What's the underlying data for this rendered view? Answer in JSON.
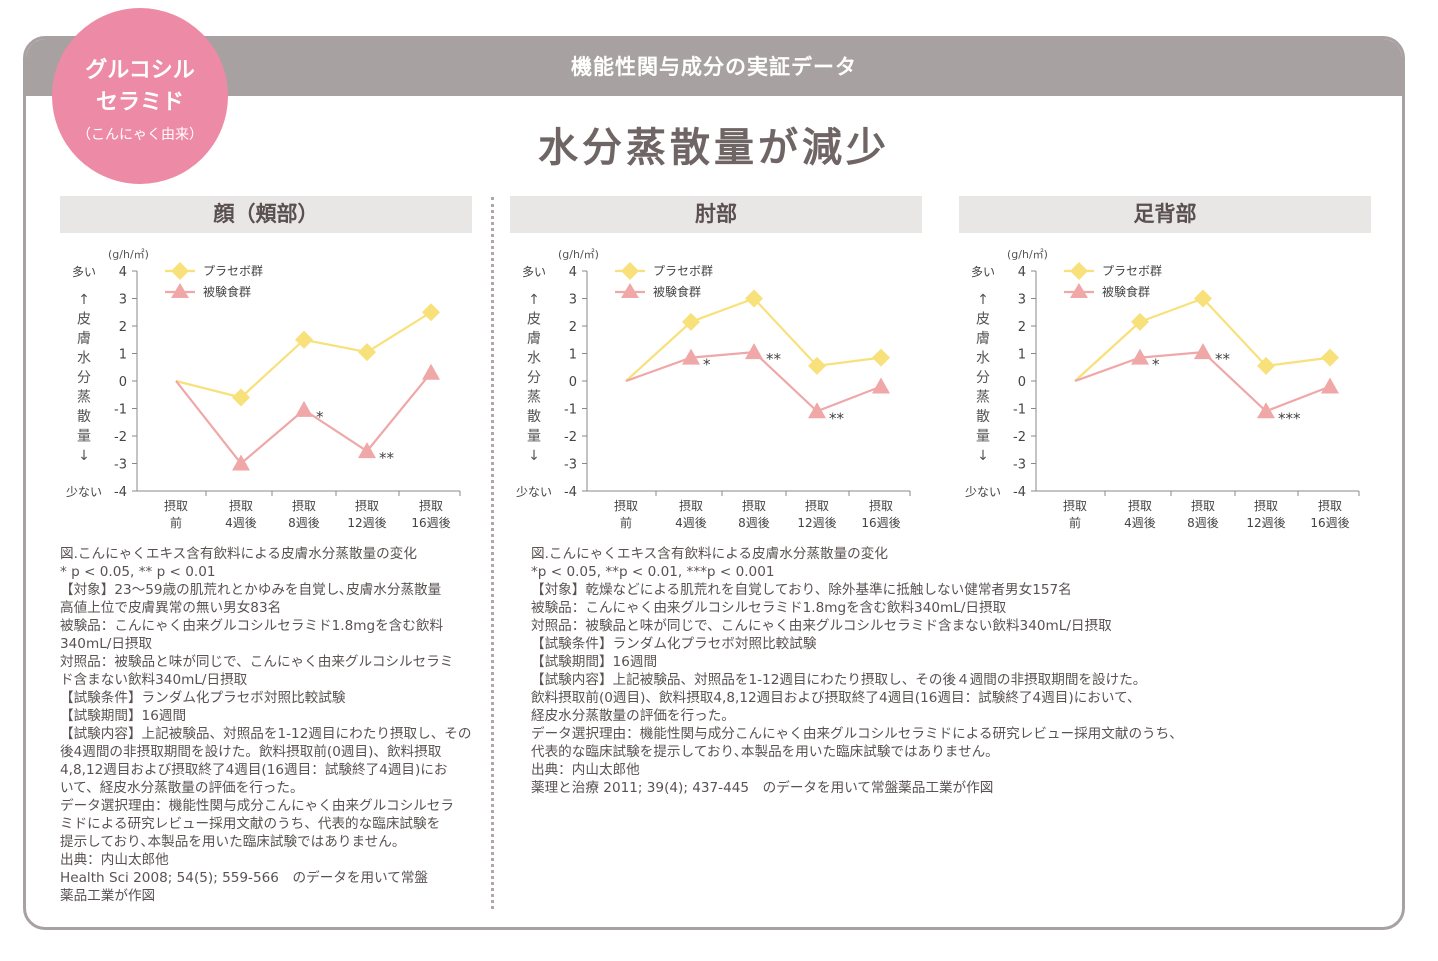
{
  "header": {
    "title": "機能性関与成分の実証データ"
  },
  "badge": {
    "line1": "グルコシル",
    "line2": "セラミド",
    "line3": "（こんにゃく由来）"
  },
  "main_title": "水分蒸散量が減少",
  "colors": {
    "placebo": "#f8e07a",
    "test": "#f0a7a7",
    "header": "#a8a1a1",
    "badge": "#ed8aa6"
  },
  "chart_data": [
    {
      "type": "line",
      "title": "顔（頬部）",
      "unit": "(g/h/㎡)",
      "ylim": [
        -4,
        4
      ],
      "yticks": [
        "4",
        "3",
        "2",
        "1",
        "0",
        "-1",
        "-2",
        "-3",
        "-4"
      ],
      "y_top_label": "多い",
      "y_bottom_label": "少ない",
      "y_side_label": [
        "↑",
        "皮",
        "膚",
        "水",
        "分",
        "蒸",
        "散",
        "量",
        "↓"
      ],
      "categories": [
        [
          "摂取",
          "前"
        ],
        [
          "摂取",
          "4週後"
        ],
        [
          "摂取",
          "8週後"
        ],
        [
          "摂取",
          "12週後"
        ],
        [
          "摂取",
          "16週後"
        ]
      ],
      "series": [
        {
          "name": "プラセボ群",
          "values": [
            0,
            -0.6,
            1.5,
            1.05,
            2.5
          ]
        },
        {
          "name": "被験食群",
          "values": [
            0,
            -3.0,
            -1.05,
            -2.55,
            0.3
          ]
        }
      ],
      "annotations": [
        {
          "index": 2,
          "text": "*"
        },
        {
          "index": 3,
          "text": "**"
        }
      ]
    },
    {
      "type": "line",
      "title": "肘部",
      "unit": "(g/h/㎡)",
      "ylim": [
        -4,
        4
      ],
      "yticks": [
        "4",
        "3",
        "2",
        "1",
        "0",
        "-1",
        "-2",
        "-3",
        "-4"
      ],
      "y_top_label": "多い",
      "y_bottom_label": "少ない",
      "y_side_label": [
        "↑",
        "皮",
        "膚",
        "水",
        "分",
        "蒸",
        "散",
        "量",
        "↓"
      ],
      "categories": [
        [
          "摂取",
          "前"
        ],
        [
          "摂取",
          "4週後"
        ],
        [
          "摂取",
          "8週後"
        ],
        [
          "摂取",
          "12週後"
        ],
        [
          "摂取",
          "16週後"
        ]
      ],
      "series": [
        {
          "name": "プラセボ群",
          "values": [
            0,
            2.15,
            3.0,
            0.55,
            0.85
          ]
        },
        {
          "name": "被験食群",
          "values": [
            0,
            0.85,
            1.05,
            -1.1,
            -0.2
          ]
        }
      ],
      "annotations": [
        {
          "index": 1,
          "text": "*"
        },
        {
          "index": 2,
          "text": "**"
        },
        {
          "index": 3,
          "text": "**"
        }
      ]
    },
    {
      "type": "line",
      "title": "足背部",
      "unit": "(g/h/㎡)",
      "ylim": [
        -4,
        4
      ],
      "yticks": [
        "4",
        "3",
        "2",
        "1",
        "0",
        "-1",
        "-2",
        "-3",
        "-4"
      ],
      "y_top_label": "多い",
      "y_bottom_label": "少ない",
      "y_side_label": [
        "↑",
        "皮",
        "膚",
        "水",
        "分",
        "蒸",
        "散",
        "量",
        "↓"
      ],
      "categories": [
        [
          "摂取",
          "前"
        ],
        [
          "摂取",
          "4週後"
        ],
        [
          "摂取",
          "8週後"
        ],
        [
          "摂取",
          "12週後"
        ],
        [
          "摂取",
          "16週後"
        ]
      ],
      "series": [
        {
          "name": "プラセボ群",
          "values": [
            0,
            2.15,
            3.0,
            0.55,
            0.85
          ]
        },
        {
          "name": "被験食群",
          "values": [
            0,
            0.85,
            1.05,
            -1.1,
            -0.2
          ]
        }
      ],
      "annotations": [
        {
          "index": 1,
          "text": "*"
        },
        {
          "index": 2,
          "text": "**"
        },
        {
          "index": 3,
          "text": "***"
        }
      ]
    }
  ],
  "caption_left": [
    "図.こんにゃくエキス含有飲料による皮膚水分蒸散量の変化",
    "* p < 0.05, ** p < 0.01",
    "【対象】23～59歳の肌荒れとかゆみを自覚し､皮膚水分蒸散量",
    "高値上位で皮膚異常の無い男女83名",
    "被験品：こんにゃく由来グルコシルセラミド1.8mgを含む飲料",
    "340mL/日摂取",
    "対照品：被験品と味が同じで、こんにゃく由来グルコシルセラミ",
    "ド含まない飲料340mL/日摂取",
    "【試験条件】ランダム化プラセボ対照比較試験",
    "【試験期間】16週間",
    "【試験内容】上記被験品、対照品を1-12週目にわたり摂取し、その",
    "後4週間の非摂取期間を設けた。飲料摂取前(0週目)、飲料摂取",
    "4,8,12週目および摂取終了4週目(16週目：試験終了4週目)にお",
    "いて、経皮水分蒸散量の評価を行った。",
    "データ選択理由：機能性関与成分こんにゃく由来グルコシルセラ",
    "ミドによる研究レビュー採用文献のうち、代表的な臨床試験を",
    "提示しており､本製品を用いた臨床試験ではありません。",
    "出典：内山太郎他",
    "Health Sci 2008; 54(5); 559-566　のデータを用いて常盤",
    "薬品工業が作図"
  ],
  "caption_right": [
    "図.こんにゃくエキス含有飲料による皮膚水分蒸散量の変化",
    "*p < 0.05, **p < 0.01, ***p < 0.001",
    "【対象】乾燥などによる肌荒れを自覚しており、除外基準に抵触しない健常者男女157名",
    "被験品：こんにゃく由来グルコシルセラミド1.8mgを含む飲料340mL/日摂取",
    "対照品：被験品と味が同じで、こんにゃく由来グルコシルセラミド含まない飲料340mL/日摂取",
    "【試験条件】ランダム化プラセボ対照比較試験",
    "【試験期間】16週間",
    "【試験内容】上記被験品、対照品を1-12週目にわたり摂取し、その後４週間の非摂取期間を設けた。",
    "飲料摂取前(0週目)、飲料摂取4,8,12週目および摂取終了4週目(16週目：試験終了4週目)において、",
    "経皮水分蒸散量の評価を行った。",
    "データ選択理由：機能性関与成分こんにゃく由来グルコシルセラミドによる研究レビュー採用文献のうち、",
    "代表的な臨床試験を提示しており､本製品を用いた臨床試験ではありません。",
    "出典：内山太郎他",
    "薬理と治療 2011; 39(4); 437-445　のデータを用いて常盤薬品工業が作図"
  ]
}
